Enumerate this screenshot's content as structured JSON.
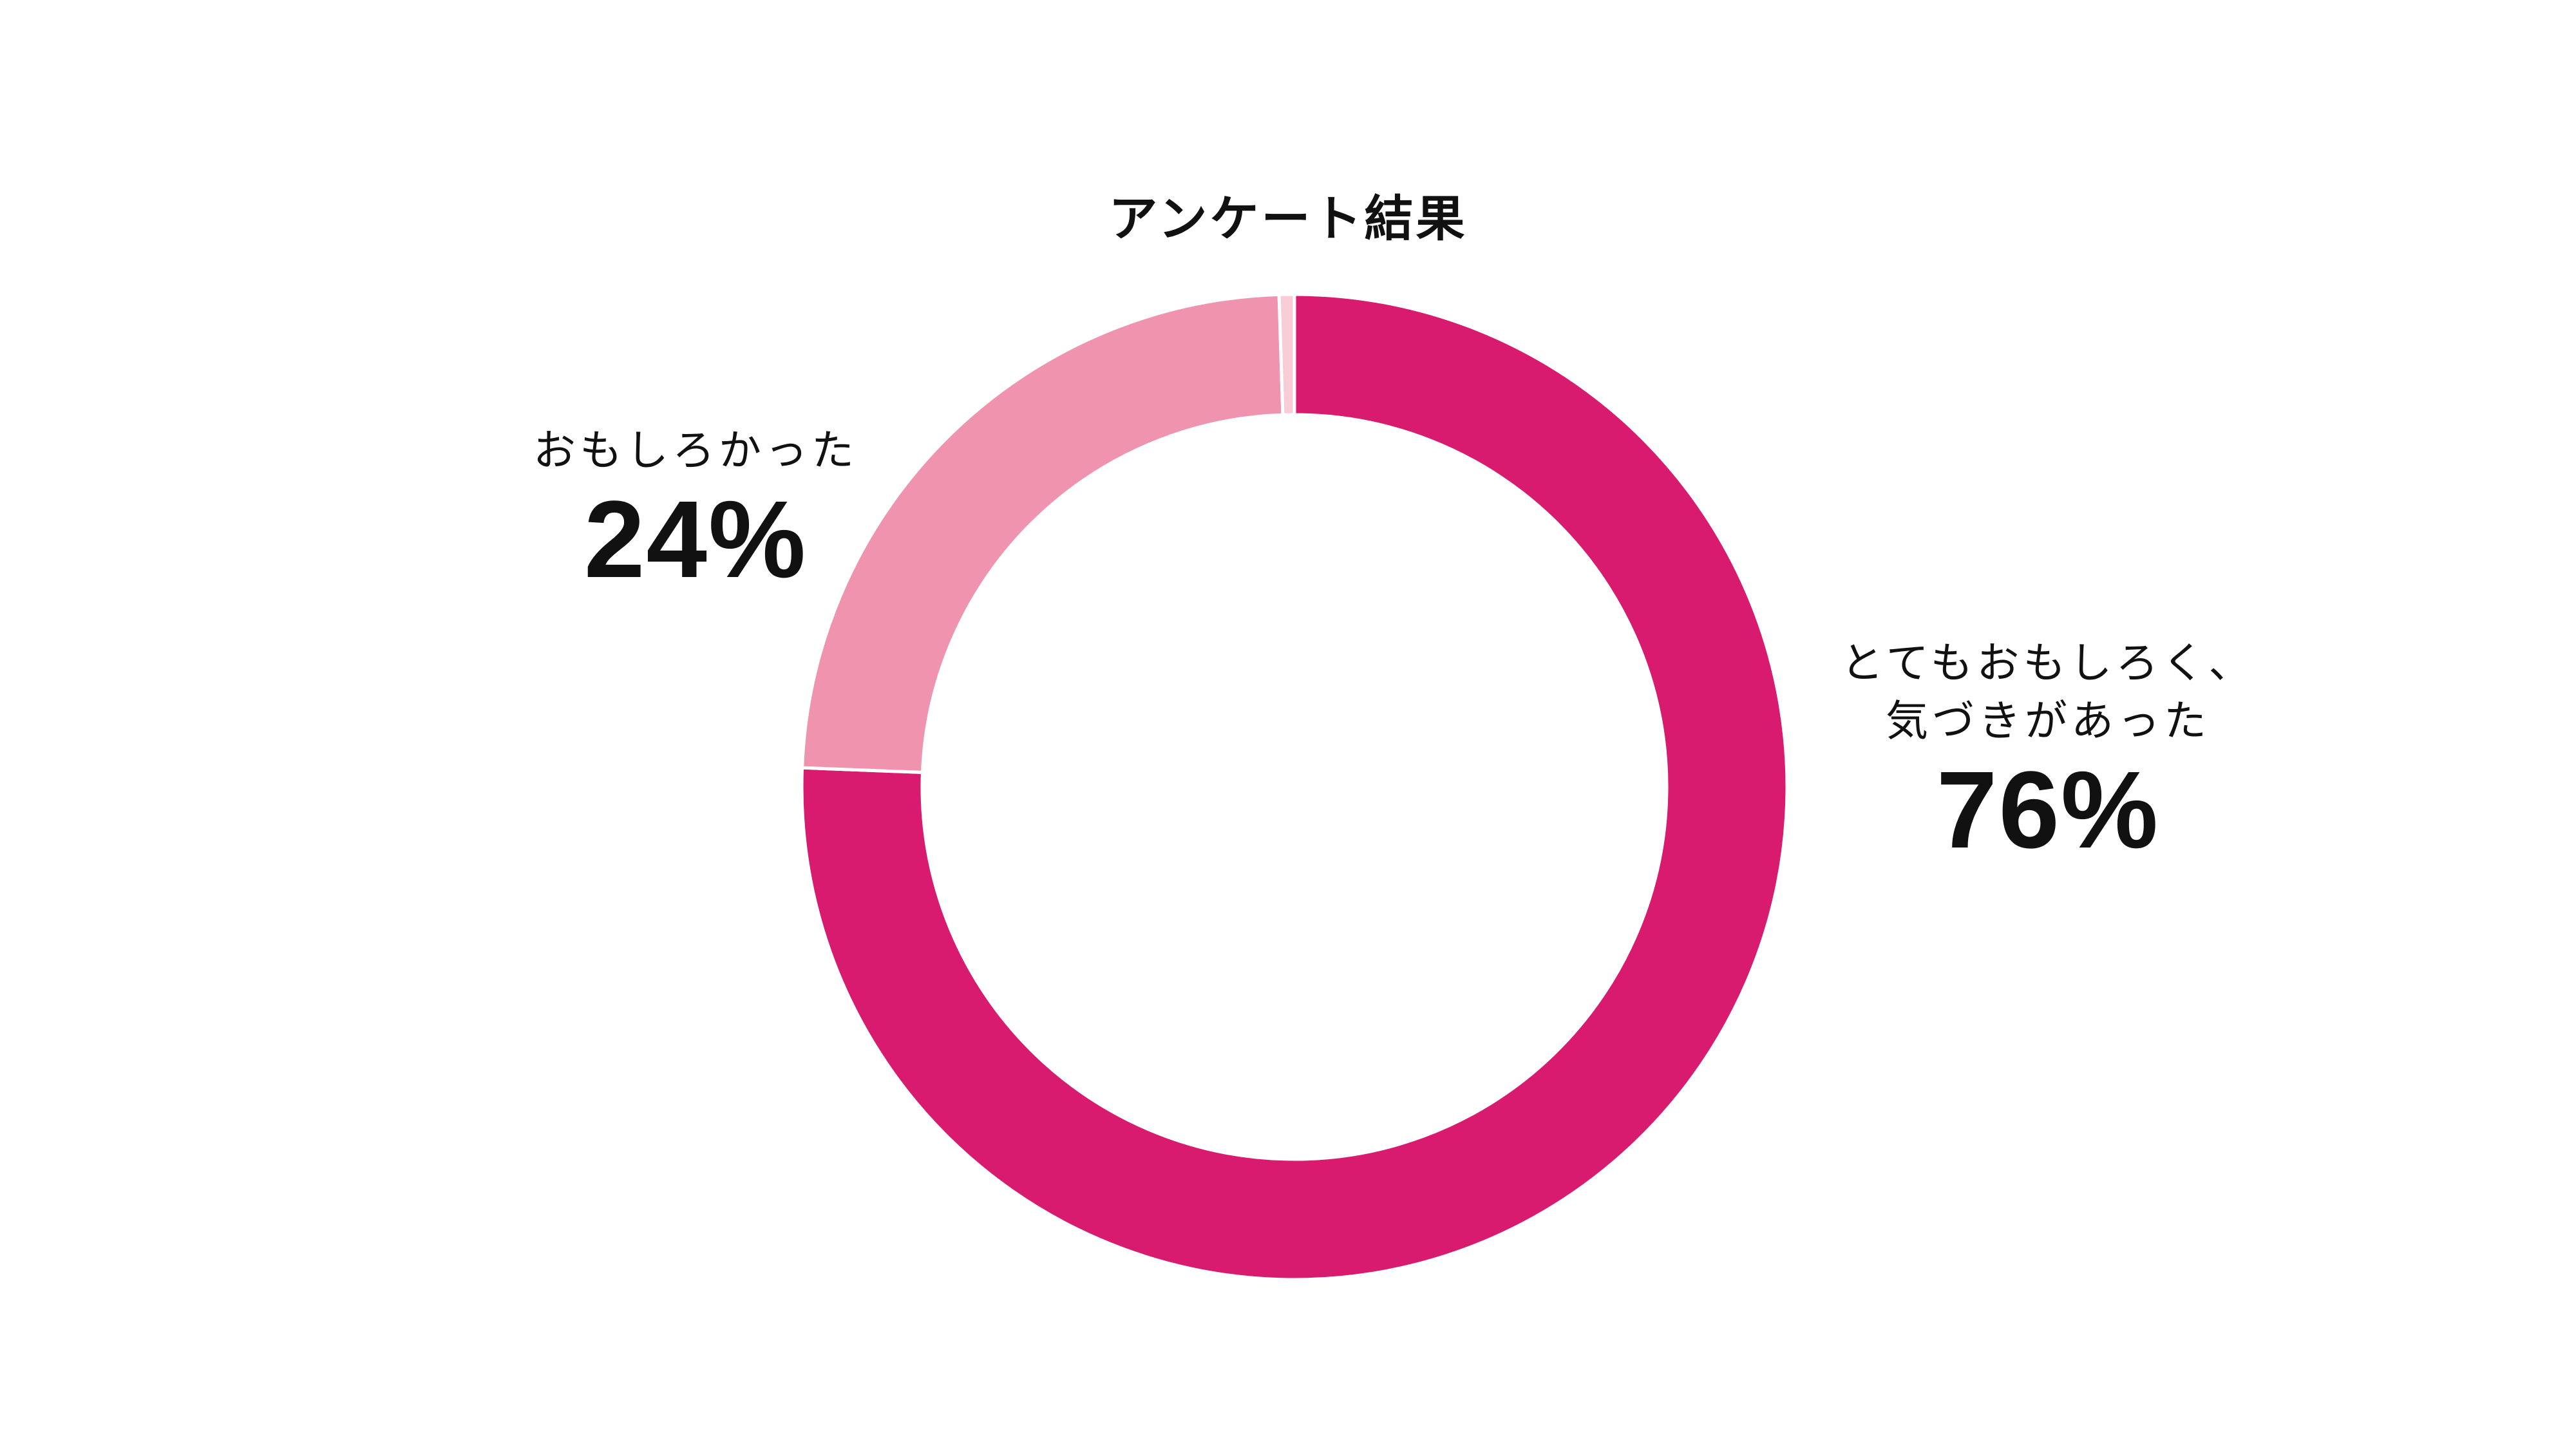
{
  "chart_data": {
    "type": "pie",
    "style": "donut",
    "title": "アンケート結果",
    "series": [
      {
        "name": "とてもおもしろく、気づきがあった",
        "label_lines": [
          "とてもおもしろく、",
          "気づきがあった"
        ],
        "value": 76,
        "value_label": "76%",
        "color": "#d81b6f"
      },
      {
        "name": "おもしろかった",
        "label_lines": [
          "おもしろかった"
        ],
        "value": 24,
        "value_label": "24%",
        "color": "#ef93ae"
      },
      {
        "name": "",
        "label_lines": [],
        "value": 0.5,
        "value_label": "",
        "color": "#f8cdd8"
      }
    ],
    "start_angle": "top",
    "direction": "clockwise",
    "legend": "none"
  }
}
